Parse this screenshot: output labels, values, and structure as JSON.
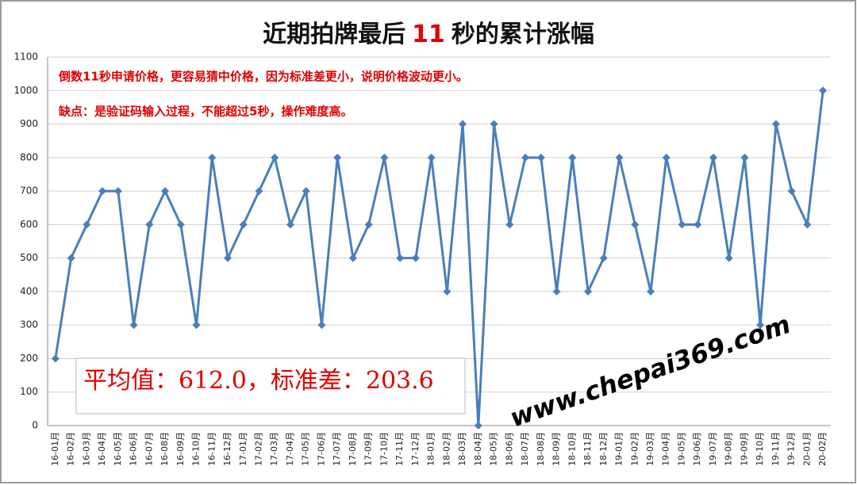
{
  "chart_data": {
    "type": "line",
    "title": {
      "before": "近期拍牌最后",
      "number": "11",
      "after": "秒的累计涨幅"
    },
    "annotations": [
      "倒数11秒申请价格，更容易猜中价格，因为标准差更小，说明价格波动更小。",
      "缺点：是验证码输入过程，不能超过5秒，操作难度高。"
    ],
    "stats_box": "平均值：612.0，标准差：203.6",
    "watermark": "www.chepai369.com",
    "categories": [
      "16-01月",
      "16-02月",
      "16-03月",
      "16-04月",
      "16-05月",
      "16-06月",
      "16-07月",
      "16-08月",
      "16-09月",
      "16-10月",
      "16-11月",
      "16-12月",
      "17-01月",
      "17-02月",
      "17-03月",
      "17-04月",
      "17-05月",
      "17-06月",
      "17-07月",
      "17-08月",
      "17-09月",
      "17-10月",
      "17-11月",
      "17-12月",
      "18-01月",
      "18-02月",
      "18-03月",
      "18-04月",
      "18-05月",
      "18-06月",
      "18-07月",
      "18-08月",
      "18-09月",
      "18-10月",
      "18-11月",
      "18-12月",
      "19-01月",
      "19-02月",
      "19-03月",
      "19-04月",
      "19-05月",
      "19-06月",
      "19-07月",
      "19-08月",
      "19-09月",
      "19-10月",
      "19-11月",
      "19-12月",
      "20-01月",
      "20-02月"
    ],
    "values": [
      200,
      500,
      600,
      700,
      700,
      300,
      600,
      700,
      600,
      300,
      800,
      500,
      600,
      700,
      800,
      600,
      700,
      300,
      800,
      500,
      600,
      800,
      500,
      500,
      800,
      400,
      900,
      0,
      900,
      600,
      800,
      800,
      400,
      800,
      400,
      500,
      800,
      600,
      400,
      800,
      600,
      600,
      800,
      500,
      800,
      300,
      900,
      700,
      600,
      1000
    ],
    "color": "#4a7ebb",
    "ylim": [
      0,
      1100
    ],
    "yticks": [
      0,
      100,
      200,
      300,
      400,
      500,
      600,
      700,
      800,
      900,
      1000,
      1100
    ],
    "grid": true
  }
}
